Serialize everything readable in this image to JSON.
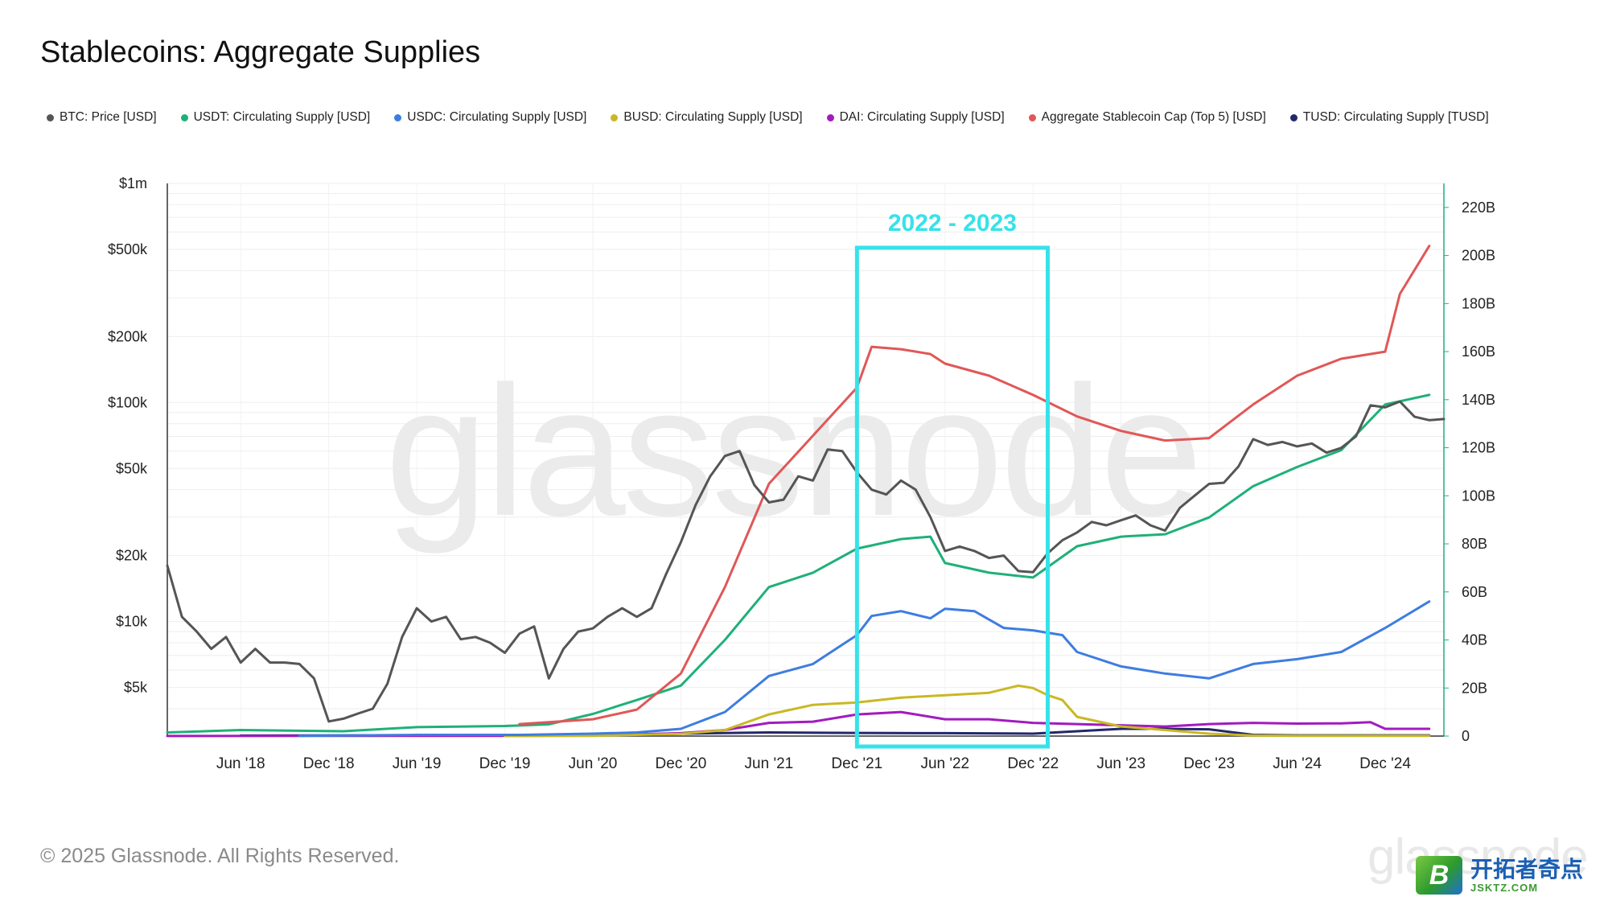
{
  "title": "Stablecoins: Aggregate Supplies",
  "footer": "© 2025 Glassnode. All Rights Reserved.",
  "watermark": "glassnode",
  "badge": {
    "name": "开拓者奇点",
    "sub": "JSKTZ.COM"
  },
  "chart_data": {
    "type": "line",
    "title": "Stablecoins: Aggregate Supplies",
    "highlight": {
      "label": "2022 - 2023",
      "x_start": "2021-12",
      "x_end": "2023-01",
      "color": "#36e2ea"
    },
    "x_ticks": [
      "Jun '18",
      "Dec '18",
      "Jun '19",
      "Dec '19",
      "Jun '20",
      "Dec '20",
      "Jun '21",
      "Dec '21",
      "Jun '22",
      "Dec '22",
      "Jun '23",
      "Dec '23",
      "Jun '24",
      "Dec '24"
    ],
    "x_range": [
      "2018-01",
      "2025-04"
    ],
    "y_left": {
      "label": "",
      "scale": "log",
      "ylim": [
        3000,
        1000000
      ],
      "ticks": [
        "$5k",
        "$10k",
        "$20k",
        "$50k",
        "$100k",
        "$200k",
        "$500k",
        "$1m"
      ],
      "tick_values": [
        5000,
        10000,
        20000,
        50000,
        100000,
        200000,
        500000,
        1000000
      ]
    },
    "y_right": {
      "label": "",
      "scale": "linear",
      "ylim": [
        0,
        230
      ],
      "unit": "B",
      "ticks": [
        "0",
        "20B",
        "40B",
        "60B",
        "80B",
        "100B",
        "120B",
        "140B",
        "160B",
        "180B",
        "200B",
        "220B"
      ],
      "tick_values": [
        0,
        20,
        40,
        60,
        80,
        100,
        120,
        140,
        160,
        180,
        200,
        220
      ]
    },
    "grid": true,
    "legend_placement": "top",
    "series": [
      {
        "name": "BTC: Price [USD]",
        "axis": "left",
        "color": "#555555",
        "x": [
          "2018-01",
          "2018-02",
          "2018-03",
          "2018-04",
          "2018-05",
          "2018-06",
          "2018-07",
          "2018-08",
          "2018-09",
          "2018-10",
          "2018-11",
          "2018-12",
          "2019-01",
          "2019-02",
          "2019-03",
          "2019-04",
          "2019-05",
          "2019-06",
          "2019-07",
          "2019-08",
          "2019-09",
          "2019-10",
          "2019-11",
          "2019-12",
          "2020-01",
          "2020-02",
          "2020-03",
          "2020-04",
          "2020-05",
          "2020-06",
          "2020-07",
          "2020-08",
          "2020-09",
          "2020-10",
          "2020-11",
          "2020-12",
          "2021-01",
          "2021-02",
          "2021-03",
          "2021-04",
          "2021-05",
          "2021-06",
          "2021-07",
          "2021-08",
          "2021-09",
          "2021-10",
          "2021-11",
          "2021-12",
          "2022-01",
          "2022-02",
          "2022-03",
          "2022-04",
          "2022-05",
          "2022-06",
          "2022-07",
          "2022-08",
          "2022-09",
          "2022-10",
          "2022-11",
          "2022-12",
          "2023-01",
          "2023-02",
          "2023-03",
          "2023-04",
          "2023-05",
          "2023-06",
          "2023-07",
          "2023-08",
          "2023-09",
          "2023-10",
          "2023-11",
          "2023-12",
          "2024-01",
          "2024-02",
          "2024-03",
          "2024-04",
          "2024-05",
          "2024-06",
          "2024-07",
          "2024-08",
          "2024-09",
          "2024-10",
          "2024-11",
          "2024-12",
          "2025-01",
          "2025-02",
          "2025-03",
          "2025-04"
        ],
        "values": [
          18000,
          10500,
          9000,
          7500,
          8500,
          6500,
          7500,
          6500,
          6500,
          6400,
          5500,
          3500,
          3600,
          3800,
          4000,
          5200,
          8500,
          11500,
          10000,
          10500,
          8300,
          8500,
          8000,
          7200,
          8800,
          9500,
          5500,
          7500,
          9000,
          9300,
          10500,
          11500,
          10500,
          11500,
          16500,
          23000,
          34000,
          46000,
          57000,
          60000,
          42000,
          35000,
          36000,
          46000,
          44000,
          61000,
          60000,
          48000,
          40000,
          38000,
          44000,
          40000,
          30000,
          21000,
          22000,
          21000,
          19500,
          20000,
          17000,
          16800,
          20500,
          23500,
          25500,
          28500,
          27500,
          29000,
          30500,
          27500,
          26000,
          33000,
          37500,
          42500,
          43000,
          51000,
          68000,
          64000,
          66000,
          63000,
          65000,
          59000,
          62000,
          70000,
          97000,
          95000,
          101000,
          86000,
          83000,
          84000
        ]
      },
      {
        "name": "USDT: Circulating Supply [USD]",
        "axis": "right",
        "color": "#1fb079",
        "x": [
          "2018-01",
          "2018-06",
          "2019-01",
          "2019-06",
          "2019-12",
          "2020-03",
          "2020-06",
          "2020-09",
          "2020-12",
          "2021-03",
          "2021-06",
          "2021-09",
          "2021-12",
          "2022-03",
          "2022-05",
          "2022-06",
          "2022-09",
          "2022-12",
          "2023-03",
          "2023-06",
          "2023-09",
          "2023-12",
          "2024-03",
          "2024-06",
          "2024-09",
          "2024-12",
          "2025-03"
        ],
        "values": [
          1.5,
          2.5,
          2.0,
          3.7,
          4.2,
          4.9,
          9.2,
          15,
          21,
          40,
          62,
          68,
          78,
          82,
          83,
          72,
          68,
          66,
          79,
          83,
          84,
          91,
          104,
          112,
          119,
          138,
          142
        ]
      },
      {
        "name": "USDC: Circulating Supply [USD]",
        "axis": "right",
        "color": "#3d7de0",
        "x": [
          "2018-10",
          "2019-06",
          "2020-01",
          "2020-06",
          "2020-09",
          "2020-12",
          "2021-03",
          "2021-06",
          "2021-09",
          "2021-12",
          "2022-01",
          "2022-03",
          "2022-05",
          "2022-06",
          "2022-08",
          "2022-10",
          "2022-12",
          "2023-02",
          "2023-03",
          "2023-06",
          "2023-09",
          "2023-12",
          "2024-03",
          "2024-06",
          "2024-09",
          "2024-12",
          "2025-03"
        ],
        "values": [
          0.1,
          0.5,
          0.5,
          1.0,
          1.5,
          3.0,
          10,
          25,
          30,
          42,
          50,
          52,
          49,
          53,
          52,
          45,
          44,
          42,
          35,
          29,
          26,
          24,
          30,
          32,
          35,
          45,
          56
        ]
      },
      {
        "name": "BUSD: Circulating Supply [USD]",
        "axis": "right",
        "color": "#c9b823",
        "x": [
          "2019-12",
          "2020-06",
          "2020-12",
          "2021-03",
          "2021-06",
          "2021-09",
          "2021-12",
          "2022-03",
          "2022-06",
          "2022-09",
          "2022-11",
          "2022-12",
          "2023-01",
          "2023-02",
          "2023-03",
          "2023-06",
          "2023-09",
          "2023-12",
          "2024-03",
          "2024-06",
          "2025-03"
        ],
        "values": [
          0.02,
          0.1,
          0.9,
          2.5,
          9,
          13,
          14,
          16,
          17,
          18,
          21,
          20,
          17,
          15,
          8,
          4,
          2.5,
          1.0,
          0.2,
          0.1,
          0.1
        ]
      },
      {
        "name": "DAI: Circulating Supply [USD]",
        "axis": "right",
        "color": "#a21bbf",
        "x": [
          "2018-01",
          "2019-06",
          "2020-01",
          "2020-06",
          "2020-12",
          "2021-03",
          "2021-06",
          "2021-09",
          "2021-12",
          "2022-03",
          "2022-06",
          "2022-09",
          "2022-12",
          "2023-03",
          "2023-06",
          "2023-09",
          "2023-12",
          "2024-03",
          "2024-06",
          "2024-09",
          "2024-11",
          "2024-12",
          "2025-03"
        ],
        "values": [
          0.05,
          0.1,
          0.1,
          0.2,
          1.2,
          2.5,
          5.5,
          6,
          9,
          10,
          7,
          7,
          5.5,
          5,
          4.5,
          4,
          5,
          5.5,
          5.2,
          5.3,
          5.8,
          3,
          3
        ]
      },
      {
        "name": "Aggregate Stablecoin Cap (Top 5) [USD]",
        "axis": "right",
        "color": "#e05757",
        "x": [
          "2020-01",
          "2020-06",
          "2020-09",
          "2020-12",
          "2021-03",
          "2021-06",
          "2021-09",
          "2021-12",
          "2022-01",
          "2022-03",
          "2022-05",
          "2022-06",
          "2022-09",
          "2022-12",
          "2023-03",
          "2023-06",
          "2023-09",
          "2023-12",
          "2024-03",
          "2024-06",
          "2024-09",
          "2024-12",
          "2025-01",
          "2025-03"
        ],
        "values": [
          5,
          7,
          11,
          26,
          62,
          105,
          125,
          145,
          162,
          161,
          159,
          155,
          150,
          142,
          133,
          127,
          123,
          124,
          138,
          150,
          157,
          160,
          184,
          204
        ]
      },
      {
        "name": "TUSD: Circulating Supply [TUSD]",
        "axis": "right",
        "color": "#23286a",
        "x": [
          "2018-06",
          "2019-06",
          "2020-06",
          "2021-06",
          "2021-12",
          "2022-06",
          "2022-12",
          "2023-03",
          "2023-06",
          "2023-09",
          "2023-12",
          "2024-03",
          "2024-06",
          "2025-03"
        ],
        "values": [
          0.2,
          0.3,
          0.5,
          1.5,
          1.3,
          1.2,
          1.0,
          2.0,
          3.0,
          3.0,
          2.8,
          0.5,
          0.3,
          0.3
        ]
      }
    ]
  }
}
